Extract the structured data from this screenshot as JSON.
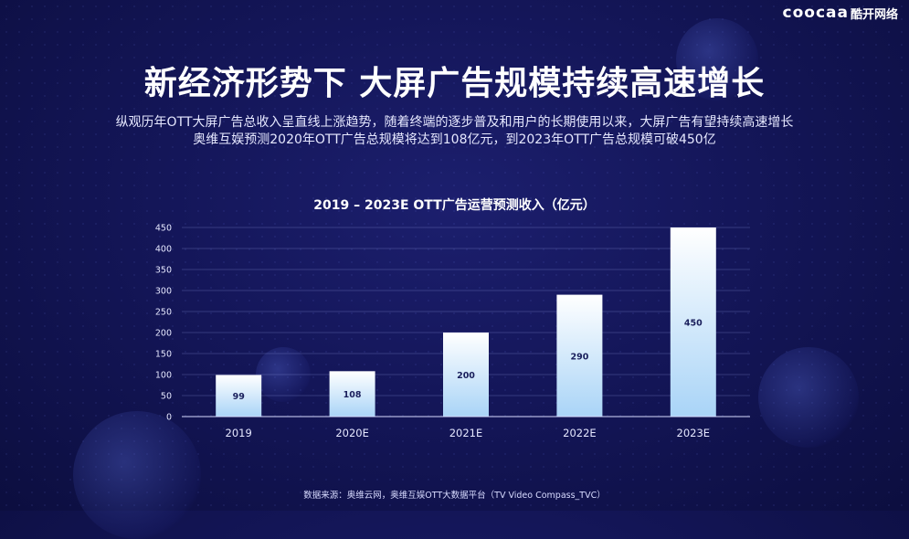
{
  "logo": {
    "brand_en": "COOCAA",
    "brand_cn": "酷开网络"
  },
  "header": {
    "title": "新经济形势下 大屏广告规模持续高速增长",
    "subtitle_line1": "纵观历年OTT大屏广告总收入呈直线上涨趋势，随着终端的逐步普及和用户的长期使用以来，大屏广告有望持续高速增长",
    "subtitle_line2": "奥维互娱预测2020年OTT广告总规模将达到108亿元，到2023年OTT广告总规模可破450亿"
  },
  "chart_data": {
    "type": "bar",
    "title": "2019 – 2023E OTT广告运营预测收入（亿元）",
    "xlabel": "",
    "ylabel": "",
    "categories": [
      "2019",
      "2020E",
      "2021E",
      "2022E",
      "2023E"
    ],
    "values": [
      99,
      108,
      200,
      290,
      450
    ],
    "ylim": [
      0,
      450
    ],
    "yticks": [
      0,
      50,
      100,
      150,
      200,
      250,
      300,
      350,
      400,
      450
    ],
    "grid": true,
    "bar_colors": [
      "#ffffff",
      "#a9d4f7"
    ]
  },
  "footer": {
    "source": "数据来源：奥维云网，奥维互娱OTT大数据平台（TV Video Compass_TVC）"
  }
}
